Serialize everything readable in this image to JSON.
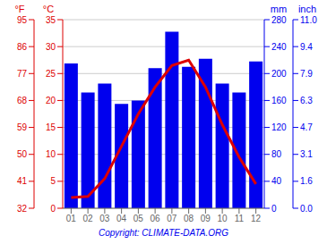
{
  "chart_data": {
    "type": "bar",
    "categories": [
      "01",
      "02",
      "03",
      "04",
      "05",
      "06",
      "07",
      "08",
      "09",
      "10",
      "11",
      "12"
    ],
    "series": [
      {
        "type": "bar",
        "color": "#0000ee",
        "values": [
          215,
          172,
          185,
          155,
          160,
          208,
          262,
          210,
          222,
          185,
          172,
          218
        ]
      },
      {
        "type": "line",
        "axis": "y2",
        "color": "#dd0000",
        "values": [
          2.0,
          2.2,
          5.5,
          11.5,
          17.5,
          22.5,
          26.5,
          27.5,
          22.5,
          15.5,
          9.5,
          4.5
        ]
      }
    ],
    "ylabel": "mm",
    "ylim": [
      0,
      280
    ],
    "yticks": [
      0,
      40,
      80,
      120,
      160,
      200,
      240,
      280
    ],
    "y2label": "°C",
    "y2lim": [
      0,
      35
    ],
    "y2ticks": [
      0,
      5,
      10,
      15,
      20,
      25,
      30,
      35
    ],
    "y3label": "°F",
    "y3lim": [
      0,
      35
    ],
    "y3ticks": [
      {
        "value": 0,
        "label": "32"
      },
      {
        "value": 5,
        "label": "41"
      },
      {
        "value": 10,
        "label": "50"
      },
      {
        "value": 15,
        "label": "59"
      },
      {
        "value": 20,
        "label": "68"
      },
      {
        "value": 25,
        "label": "77"
      },
      {
        "value": 30,
        "label": "86"
      },
      {
        "value": 35,
        "label": "95"
      }
    ],
    "y4label": "inch",
    "y4lim": [
      0,
      280
    ],
    "y4ticks": [
      {
        "value": 0,
        "label": "0.0"
      },
      {
        "value": 40,
        "label": "1.6"
      },
      {
        "value": 80,
        "label": "3.1"
      },
      {
        "value": 120,
        "label": "4.7"
      },
      {
        "value": 160,
        "label": "6.3"
      },
      {
        "value": 200,
        "label": "7.9"
      },
      {
        "value": 240,
        "label": "9.4"
      },
      {
        "value": 280,
        "label": "11.0"
      }
    ],
    "grid": true,
    "annotations": [
      "Copyright: CLIMATE-DATA.ORG"
    ]
  }
}
